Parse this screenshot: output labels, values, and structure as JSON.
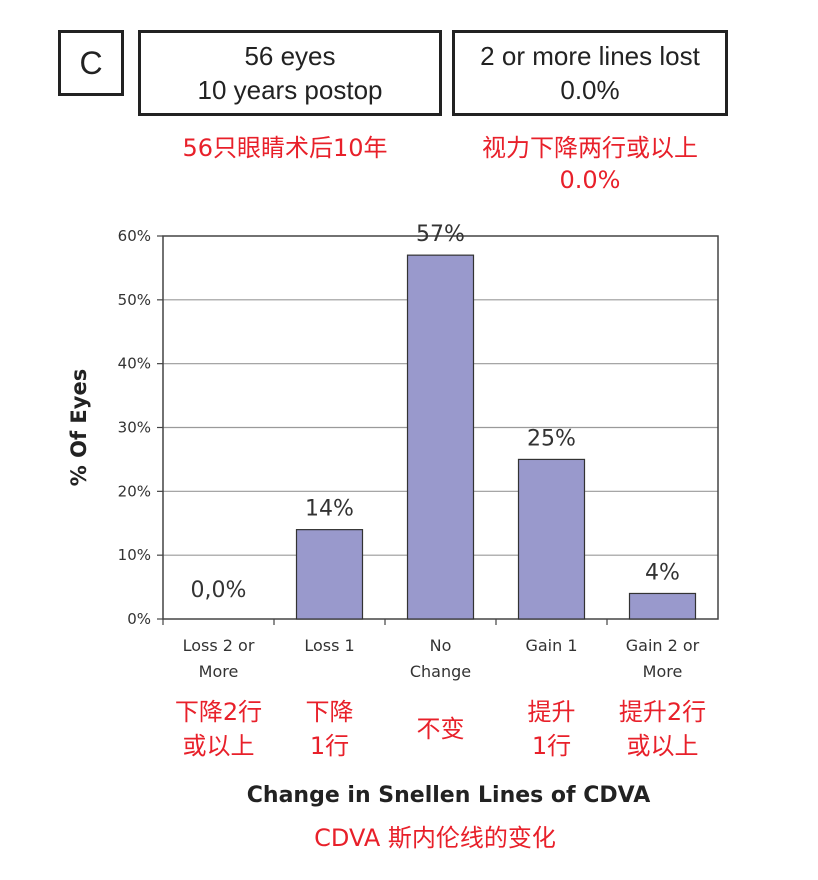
{
  "header": {
    "panel_letter": "C",
    "box_left": {
      "line1": "56 eyes",
      "line2": "10 years postop"
    },
    "box_right": {
      "line1": "2 or more lines lost",
      "line2": "0.0%"
    }
  },
  "annotations": {
    "box_left_cn": "56只眼睛术后10年",
    "box_right_cn_line1": "视力下降两行或以上",
    "box_right_cn_line2": "0.0%",
    "categories_cn": [
      [
        "下降2行",
        "或以上"
      ],
      [
        "下降",
        "1行"
      ],
      [
        "不变"
      ],
      [
        "提升",
        "1行"
      ],
      [
        "提升2行",
        "或以上"
      ]
    ],
    "xlabel_cn": "CDVA 斯内伦线的变化"
  },
  "chart_data": {
    "type": "bar",
    "categories": [
      [
        "Loss 2 or",
        "More"
      ],
      [
        "Loss 1"
      ],
      [
        "No",
        "Change"
      ],
      [
        "Gain 1"
      ],
      [
        "Gain 2 or",
        "More"
      ]
    ],
    "values": [
      0,
      14,
      57,
      25,
      4
    ],
    "data_labels": [
      "0,0%",
      "14%",
      "57%",
      "25%",
      "4%"
    ],
    "yticks": [
      "0%",
      "10%",
      "20%",
      "30%",
      "40%",
      "50%",
      "60%"
    ],
    "ylim": [
      0,
      60
    ],
    "ylabel": "% Of Eyes",
    "xlabel": "Change in Snellen Lines of CDVA",
    "grid": true,
    "bar_color": "#9999cc",
    "bar_edge_color": "#333333"
  }
}
